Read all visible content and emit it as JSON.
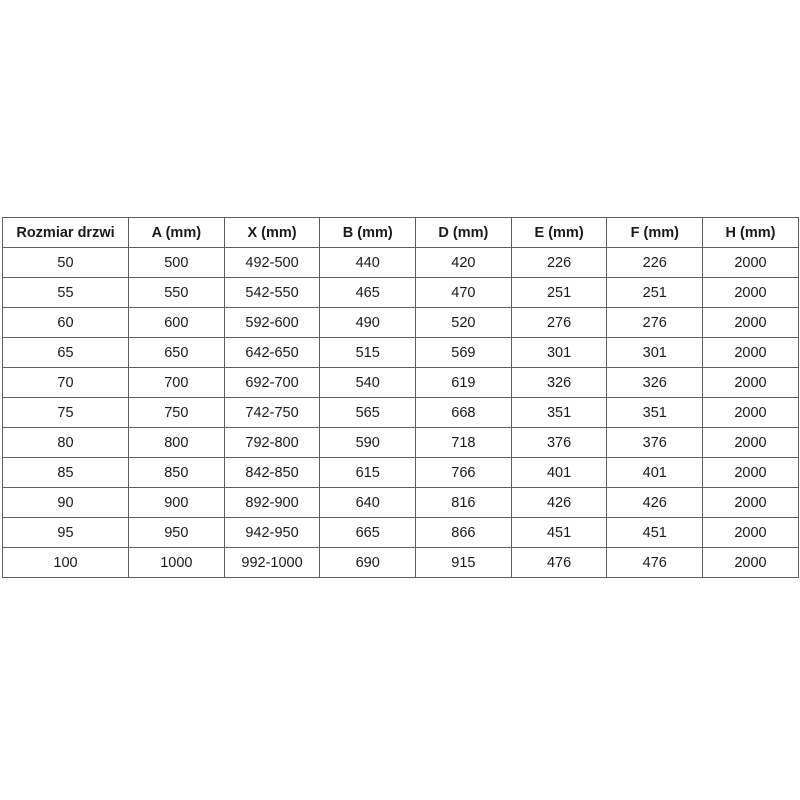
{
  "table": {
    "name": "door-size-dimensions-table",
    "columns": [
      "Rozmiar drzwi",
      "A (mm)",
      "X (mm)",
      "B (mm)",
      "D (mm)",
      "E (mm)",
      "F (mm)",
      "H (mm)"
    ],
    "rows": [
      [
        "50",
        "500",
        "492-500",
        "440",
        "420",
        "226",
        "226",
        "2000"
      ],
      [
        "55",
        "550",
        "542-550",
        "465",
        "470",
        "251",
        "251",
        "2000"
      ],
      [
        "60",
        "600",
        "592-600",
        "490",
        "520",
        "276",
        "276",
        "2000"
      ],
      [
        "65",
        "650",
        "642-650",
        "515",
        "569",
        "301",
        "301",
        "2000"
      ],
      [
        "70",
        "700",
        "692-700",
        "540",
        "619",
        "326",
        "326",
        "2000"
      ],
      [
        "75",
        "750",
        "742-750",
        "565",
        "668",
        "351",
        "351",
        "2000"
      ],
      [
        "80",
        "800",
        "792-800",
        "590",
        "718",
        "376",
        "376",
        "2000"
      ],
      [
        "85",
        "850",
        "842-850",
        "615",
        "766",
        "401",
        "401",
        "2000"
      ],
      [
        "90",
        "900",
        "892-900",
        "640",
        "816",
        "426",
        "426",
        "2000"
      ],
      [
        "95",
        "950",
        "942-950",
        "665",
        "866",
        "451",
        "451",
        "2000"
      ],
      [
        "100",
        "1000",
        "992-1000",
        "690",
        "915",
        "476",
        "476",
        "2000"
      ]
    ],
    "colors": {
      "border": "#5f5f5f",
      "text": "#1a1a1a",
      "background": "#ffffff"
    }
  }
}
